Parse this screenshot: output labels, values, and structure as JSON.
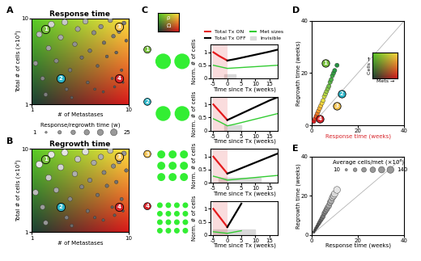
{
  "chart_data": [
    {
      "type": "scatter",
      "panel_label": "A",
      "title": "Response time",
      "xlabel": "# of Metastases",
      "ylabel": "Total # of cells (×10³)",
      "log": true,
      "xlim": [
        1,
        10
      ],
      "ylim": [
        1,
        10
      ],
      "xticks": [
        1,
        10
      ],
      "yticks": [
        1,
        10
      ],
      "x": [
        1.1,
        1.2,
        1.3,
        1.5,
        1.6,
        1.8,
        2.0,
        2.2,
        2.5,
        2.8,
        3.0,
        3.3,
        3.6,
        4.0,
        4.4,
        4.8,
        5.2,
        5.6,
        6.0,
        6.5,
        7.0,
        7.5,
        8.0,
        8.5,
        9.0,
        9.5,
        2.3,
        3.8,
        5.5,
        7.2,
        1.4,
        2.6,
        4.5,
        6.8,
        8.8
      ],
      "y": [
        3.0,
        6.5,
        2.0,
        4.5,
        8.5,
        3.2,
        6.0,
        9.0,
        2.5,
        5.0,
        7.5,
        3.5,
        9.2,
        4.2,
        6.8,
        2.8,
        8.0,
        5.2,
        3.6,
        9.5,
        6.2,
        4.0,
        7.0,
        2.5,
        8.8,
        5.5,
        1.5,
        1.8,
        1.4,
        1.6,
        1.3,
        1.2,
        1.5,
        2.0,
        1.8
      ],
      "size": [
        12,
        18,
        9,
        14,
        22,
        10,
        15,
        20,
        7,
        11,
        14,
        6,
        16,
        7,
        10,
        4,
        11,
        6,
        4,
        12,
        7,
        4,
        7,
        3,
        8,
        4,
        5,
        4,
        2,
        2,
        8,
        3,
        2,
        2,
        1
      ],
      "cases": [
        {
          "label": "1",
          "x": 1.4,
          "y": 7.5,
          "color": "#7cc242"
        },
        {
          "label": "2",
          "x": 2.0,
          "y": 2.0,
          "color": "#2bb5c8"
        },
        {
          "label": "3",
          "x": 8.0,
          "y": 8.0,
          "color": "#f2c14e"
        },
        {
          "label": "4",
          "x": 8.0,
          "y": 2.0,
          "color": "#d8262c"
        }
      ],
      "size_legend": {
        "title": "Response/regrowth time (w)",
        "values": [
          1,
          25
        ]
      }
    },
    {
      "type": "scatter",
      "panel_label": "B",
      "title": "Regrowth time",
      "xlabel": "# of Metastases",
      "ylabel": "Total # of cells (×10³)",
      "log": true,
      "xlim": [
        1,
        10
      ],
      "ylim": [
        1,
        10
      ],
      "xticks": [
        1,
        10
      ],
      "yticks": [
        1,
        10
      ],
      "x": [
        1.1,
        1.2,
        1.3,
        1.5,
        1.6,
        1.8,
        2.0,
        2.2,
        2.5,
        2.8,
        3.0,
        3.3,
        3.6,
        4.0,
        4.4,
        4.8,
        5.2,
        5.6,
        6.0,
        6.5,
        7.0,
        7.5,
        8.0,
        8.5,
        9.0,
        9.5,
        2.3,
        3.8,
        5.5,
        7.2,
        1.4,
        2.6,
        4.5,
        6.8,
        8.8
      ],
      "y": [
        3.0,
        6.5,
        2.0,
        4.5,
        8.5,
        3.2,
        6.0,
        9.0,
        2.5,
        5.0,
        7.5,
        3.5,
        9.2,
        4.2,
        6.8,
        2.8,
        8.0,
        5.2,
        3.6,
        9.5,
        6.2,
        4.0,
        7.0,
        2.5,
        8.8,
        5.5,
        1.5,
        1.8,
        1.4,
        1.6,
        1.3,
        1.2,
        1.5,
        2.0,
        1.8
      ],
      "size": [
        18,
        25,
        13,
        20,
        25,
        15,
        22,
        25,
        10,
        16,
        20,
        9,
        24,
        10,
        15,
        6,
        16,
        9,
        6,
        18,
        10,
        6,
        10,
        5,
        12,
        6,
        8,
        6,
        3,
        3,
        12,
        5,
        3,
        3,
        2
      ],
      "cases": [
        {
          "label": "1",
          "x": 1.4,
          "y": 7.5,
          "color": "#7cc242"
        },
        {
          "label": "2",
          "x": 2.0,
          "y": 2.0,
          "color": "#2bb5c8"
        },
        {
          "label": "3",
          "x": 8.0,
          "y": 8.0,
          "color": "#f2c14e"
        },
        {
          "label": "4",
          "x": 8.0,
          "y": 2.0,
          "color": "#d8262c"
        }
      ]
    },
    {
      "type": "line",
      "panel_label": "C",
      "case": "1",
      "case_color": "#7cc242",
      "mets": 2,
      "icon_labels": [
        "ρ",
        "Ω"
      ],
      "xlabel": "Time since Tx (weeks)",
      "ylabel": "Norm. # of cells",
      "xlim": [
        -6,
        18
      ],
      "ylim": [
        0,
        1.3
      ],
      "xticks": [
        -5,
        0,
        5,
        10,
        15
      ],
      "yticks": [
        0,
        0.5,
        1
      ],
      "legend": "lower center",
      "invisible": {
        "name": "Invisible",
        "x": [
          -1,
          3
        ],
        "ymax": 0.15
      },
      "series": [
        {
          "name": "Total Tx ON",
          "color": "#e41a1c",
          "x": [
            -5,
            -4,
            -3,
            -2,
            -1,
            0
          ],
          "values": [
            1,
            0.93,
            0.86,
            0.8,
            0.74,
            0.68
          ]
        },
        {
          "name": "Total Tx OFF",
          "color": "#000000",
          "x": [
            0,
            3,
            6,
            9,
            12,
            15,
            18
          ],
          "values": [
            0.68,
            0.74,
            0.81,
            0.88,
            0.95,
            1.02,
            1.1
          ]
        },
        {
          "name": "Met sizes",
          "color": "#33cc33",
          "x": [
            -5,
            -2.5,
            0,
            3,
            6,
            9,
            12,
            15,
            18
          ],
          "values": [
            0.5,
            0.44,
            0.38,
            0.4,
            0.42,
            0.44,
            0.46,
            0.48,
            0.5
          ]
        }
      ]
    },
    {
      "type": "line",
      "case": "2",
      "case_color": "#2bb5c8",
      "mets": 2,
      "xlabel": "Time since Tx (weeks)",
      "ylabel": "Norm. # of cells",
      "xlim": [
        -6,
        18
      ],
      "ylim": [
        0,
        1.3
      ],
      "xticks": [
        -5,
        0,
        5,
        10,
        15
      ],
      "yticks": [
        0,
        0.5,
        1
      ],
      "invisible": {
        "name": "Invisible",
        "x": [
          -1,
          5
        ],
        "ymax": 0.2
      },
      "series": [
        {
          "name": "Total Tx ON",
          "color": "#e41a1c",
          "x": [
            -5,
            -4,
            -3,
            -2,
            -1,
            0
          ],
          "values": [
            1,
            0.88,
            0.76,
            0.64,
            0.52,
            0.4
          ]
        },
        {
          "name": "Total Tx OFF",
          "color": "#000000",
          "x": [
            0,
            3,
            6,
            9,
            12,
            15,
            18
          ],
          "values": [
            0.4,
            0.55,
            0.7,
            0.85,
            1.0,
            1.15,
            1.28
          ]
        },
        {
          "name": "Met sizes",
          "color": "#33cc33",
          "x": [
            -5,
            -2.5,
            0,
            3,
            6,
            9,
            12,
            15,
            18
          ],
          "values": [
            0.45,
            0.32,
            0.18,
            0.25,
            0.33,
            0.41,
            0.49,
            0.57,
            0.65
          ]
        }
      ]
    },
    {
      "type": "line",
      "case": "3",
      "case_color": "#f2c14e",
      "mets": 9,
      "xlabel": "Time since Tx (weeks)",
      "ylabel": "Norm. # of cells",
      "xlim": [
        -6,
        18
      ],
      "ylim": [
        0,
        1.3
      ],
      "xticks": [
        -5,
        0,
        5,
        10,
        15
      ],
      "yticks": [
        0,
        0.5,
        1
      ],
      "invisible": {
        "name": "Invisible",
        "x": [
          -3,
          12
        ],
        "ymax": 0.2
      },
      "series": [
        {
          "name": "Total Tx ON",
          "color": "#e41a1c",
          "x": [
            -5,
            -4,
            -3,
            -2,
            -1,
            0
          ],
          "values": [
            1,
            0.87,
            0.74,
            0.61,
            0.48,
            0.35
          ]
        },
        {
          "name": "Total Tx OFF",
          "color": "#000000",
          "x": [
            0,
            3,
            6,
            9,
            12,
            15,
            18
          ],
          "values": [
            0.35,
            0.47,
            0.6,
            0.73,
            0.86,
            0.99,
            1.12
          ]
        },
        {
          "name": "Met sizes",
          "color": "#33cc33",
          "x": [
            -5,
            -2.5,
            0,
            3,
            6,
            9,
            12,
            15,
            18
          ],
          "values": [
            0.25,
            0.18,
            0.1,
            0.13,
            0.16,
            0.19,
            0.22,
            0.25,
            0.28
          ]
        }
      ]
    },
    {
      "type": "line",
      "case": "4",
      "case_color": "#d8262c",
      "mets": 16,
      "xlabel": "Time since Tx (weeks)",
      "ylabel": "Norm. # of cells",
      "xlim": [
        -6,
        18
      ],
      "ylim": [
        0,
        1.3
      ],
      "xticks": [
        -5,
        0,
        5,
        10,
        15
      ],
      "yticks": [
        0,
        0.5,
        1
      ],
      "invisible": {
        "name": "Invisible",
        "x": [
          -5,
          10
        ],
        "ymax": 0.2
      },
      "series": [
        {
          "name": "Total Tx ON",
          "color": "#e41a1c",
          "x": [
            -5,
            -4,
            -3,
            -2,
            -1,
            0
          ],
          "values": [
            1,
            0.86,
            0.72,
            0.58,
            0.44,
            0.3
          ]
        },
        {
          "name": "Total Tx OFF",
          "color": "#000000",
          "x": [
            0,
            1,
            2,
            3,
            4,
            5
          ],
          "values": [
            0.3,
            0.48,
            0.66,
            0.84,
            1.02,
            1.2
          ]
        },
        {
          "name": "Met sizes",
          "color": "#33cc33",
          "x": [
            -5,
            -2.5,
            0,
            1,
            2,
            3,
            4,
            5
          ],
          "values": [
            0.12,
            0.09,
            0.06,
            0.08,
            0.1,
            0.12,
            0.14,
            0.16
          ]
        }
      ]
    },
    {
      "type": "scatter",
      "panel_label": "D",
      "xlabel": "Response time (weeks)",
      "ylabel": "Regrowth time (weeks)",
      "xlim": [
        0,
        40
      ],
      "ylim": [
        0,
        40
      ],
      "xticks": [
        0,
        20,
        40
      ],
      "yticks": [
        0,
        20,
        40
      ],
      "x": [
        1,
        1.5,
        2,
        2.5,
        3,
        3.5,
        4,
        4.5,
        5,
        5.5,
        6,
        6.5,
        7,
        7.5,
        8,
        8.5,
        9,
        9.5,
        10,
        11
      ],
      "y": [
        1.5,
        2.5,
        3.5,
        4.5,
        5.5,
        6.5,
        7.5,
        8.5,
        9.5,
        11,
        12,
        13,
        14,
        15,
        16.5,
        17.5,
        19,
        20,
        21,
        23
      ],
      "colors": [
        "#d7191c",
        "#e0391f",
        "#e85a22",
        "#ef7a25",
        "#f59b2a",
        "#f9b32f",
        "#fcc836",
        "#f6d93d",
        "#e5de40",
        "#cfdc42",
        "#b7d644",
        "#9ecf45",
        "#86c746",
        "#70bf46",
        "#5cb746",
        "#4aaf46",
        "#3da845",
        "#33a044",
        "#2b9943",
        "#259142"
      ],
      "cases": [
        {
          "label": "1",
          "x": 6,
          "y": 24,
          "color": "#7cc242"
        },
        {
          "label": "2",
          "x": 13,
          "y": 12,
          "color": "#2bb5c8"
        },
        {
          "label": "3",
          "x": 11,
          "y": 7.5,
          "color": "#f2c14e"
        },
        {
          "label": "4",
          "x": 3.5,
          "y": 2.5,
          "color": "#d8262c"
        }
      ],
      "inset": {
        "xlabel": "Mets →",
        "ylabel": "Cells →"
      }
    },
    {
      "type": "scatter",
      "panel_label": "E",
      "xlabel": "Response time (weeks)",
      "ylabel": "Regrowth time (weeks)",
      "xlim": [
        0,
        40
      ],
      "ylim": [
        0,
        40
      ],
      "xticks": [
        0,
        20,
        40
      ],
      "yticks": [
        0,
        20,
        40
      ],
      "x": [
        1,
        1.5,
        2,
        2.5,
        3,
        3.5,
        4,
        4.5,
        5,
        5.5,
        6,
        6.5,
        7,
        7.5,
        8,
        8.5,
        9,
        9.5,
        10,
        11
      ],
      "y": [
        1.5,
        2.5,
        3.5,
        4.5,
        5.5,
        6.5,
        7.5,
        8.5,
        9.5,
        11,
        12,
        13,
        14,
        15,
        16.5,
        17.5,
        19,
        20,
        21,
        23
      ],
      "size": [
        10,
        15,
        20,
        25,
        30,
        35,
        40,
        50,
        55,
        60,
        70,
        75,
        80,
        90,
        95,
        100,
        110,
        120,
        130,
        140
      ],
      "size_legend": {
        "title": "Average cells/met (×10³)",
        "values": [
          10,
          140
        ]
      }
    }
  ]
}
